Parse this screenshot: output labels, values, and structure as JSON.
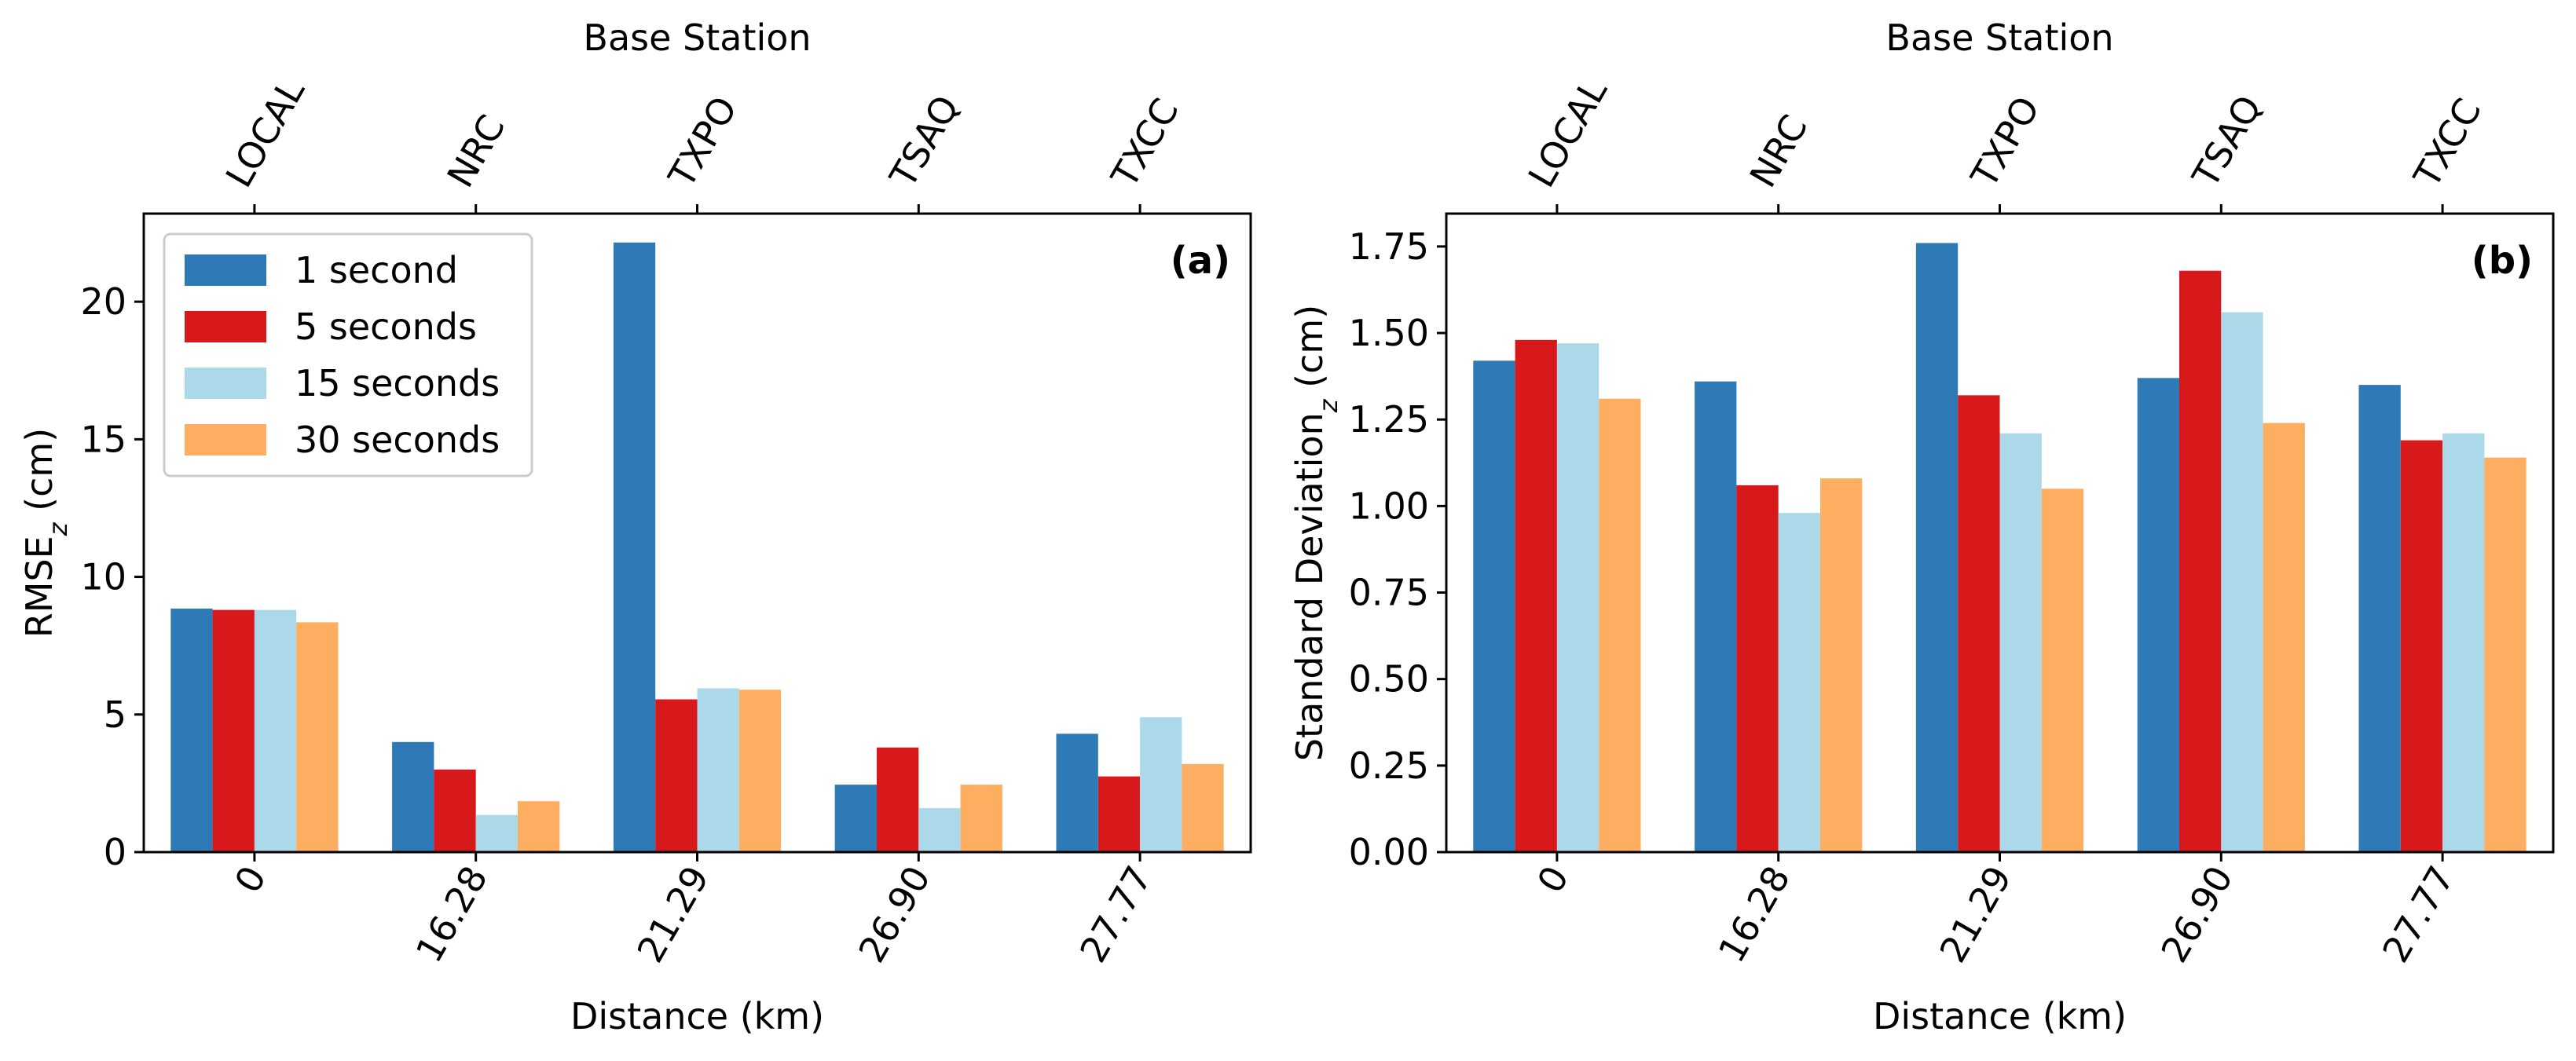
{
  "chart_data": [
    {
      "type": "bar",
      "panel_label": "(a)",
      "xlabel": "Distance (km)",
      "ylabel": "RMSE",
      "ylabel_sub": "z",
      "ylabel_unit": " (cm)",
      "top_xlabel": "Base Station",
      "categories": [
        "0",
        "16.28",
        "21.29",
        "26.90",
        "27.77"
      ],
      "top_categories": [
        "LOCAL",
        "NRC",
        "TXPO",
        "TSAQ",
        "TXCC"
      ],
      "ylim": [
        0,
        23.2
      ],
      "yticks": [
        "0",
        "5",
        "10",
        "15",
        "20"
      ],
      "ytick_values": [
        0,
        5,
        10,
        15,
        20
      ],
      "legend": "upper left",
      "series": [
        {
          "name": "1 second",
          "color": "#2e7ab6",
          "values": [
            8.85,
            4.0,
            22.15,
            2.45,
            4.3
          ]
        },
        {
          "name": "5 seconds",
          "color": "#d7191c",
          "values": [
            8.8,
            3.0,
            5.55,
            3.8,
            2.75
          ]
        },
        {
          "name": "15 seconds",
          "color": "#abd9e9",
          "values": [
            8.8,
            1.35,
            5.95,
            1.6,
            4.9
          ]
        },
        {
          "name": "30 seconds",
          "color": "#fdae61",
          "values": [
            8.35,
            1.85,
            5.9,
            2.45,
            3.2
          ]
        }
      ]
    },
    {
      "type": "bar",
      "panel_label": "(b)",
      "xlabel": "Distance (km)",
      "ylabel": "Standard Deviation",
      "ylabel_sub": "z",
      "ylabel_unit": " (cm)",
      "top_xlabel": "Base Station",
      "categories": [
        "0",
        "16.28",
        "21.29",
        "26.90",
        "27.77"
      ],
      "top_categories": [
        "LOCAL",
        "NRC",
        "TXPO",
        "TSAQ",
        "TXCC"
      ],
      "ylim": [
        0,
        1.845
      ],
      "yticks": [
        "0.00",
        "0.25",
        "0.50",
        "0.75",
        "1.00",
        "1.25",
        "1.50",
        "1.75"
      ],
      "ytick_values": [
        0,
        0.25,
        0.5,
        0.75,
        1.0,
        1.25,
        1.5,
        1.75
      ],
      "series": [
        {
          "name": "1 second",
          "color": "#2e7ab6",
          "values": [
            1.42,
            1.36,
            1.76,
            1.37,
            1.35
          ]
        },
        {
          "name": "5 seconds",
          "color": "#d7191c",
          "values": [
            1.48,
            1.06,
            1.32,
            1.68,
            1.19
          ]
        },
        {
          "name": "15 seconds",
          "color": "#abd9e9",
          "values": [
            1.47,
            0.98,
            1.21,
            1.56,
            1.21
          ]
        },
        {
          "name": "30 seconds",
          "color": "#fdae61",
          "values": [
            1.31,
            1.08,
            1.05,
            1.24,
            1.14
          ]
        }
      ]
    }
  ]
}
